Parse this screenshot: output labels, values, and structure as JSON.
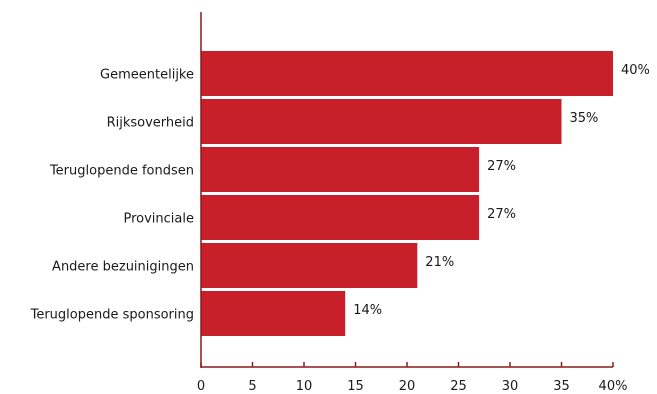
{
  "chart_data": {
    "type": "bar",
    "orientation": "horizontal",
    "categories": [
      "Gemeentelijke",
      "Rijksoverheid",
      "Teruglopende fondsen",
      "Provinciale",
      "Andere bezuinigingen",
      "Teruglopende sponsoring"
    ],
    "values": [
      40,
      35,
      27,
      27,
      21,
      14
    ],
    "data_labels": [
      "40%",
      "35%",
      "27%",
      "27%",
      "21%",
      "14%"
    ],
    "xlim": [
      0,
      40
    ],
    "xticks": [
      0,
      5,
      10,
      15,
      20,
      25,
      30,
      35,
      40
    ],
    "xtick_labels": [
      "0",
      "5",
      "10",
      "15",
      "20",
      "25",
      "30",
      "35",
      "40%"
    ],
    "grid": false,
    "legend": "none",
    "bar_color": "#c8202a",
    "axis_color": "#8a1a1f"
  }
}
